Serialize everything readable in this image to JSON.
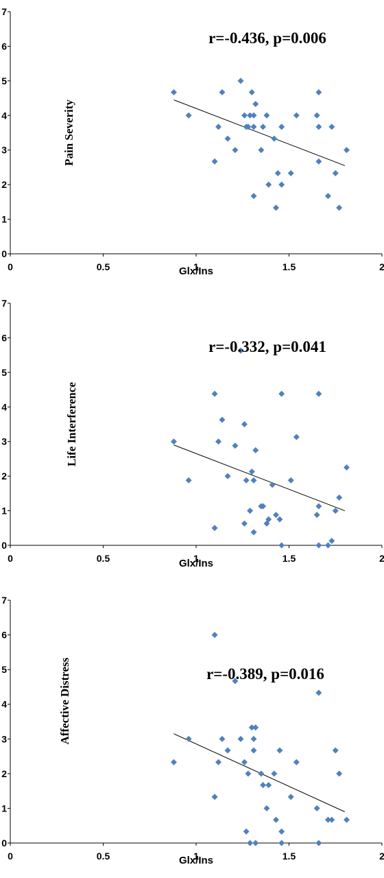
{
  "colors": {
    "marker": "#4f81bd",
    "axis": "#000000",
    "trendline": "#000000"
  },
  "chart_data": [
    {
      "type": "scatter",
      "title": "",
      "xlabel": "Glx/Ins",
      "ylabel": "Pain Severity",
      "annotation": "r=-0.436, p=0.006",
      "xlim": [
        0,
        2
      ],
      "ylim": [
        0,
        7
      ],
      "xticks": [
        0,
        0.5,
        1,
        1.5,
        2
      ],
      "xtick_labels": [
        "0",
        "0.5",
        "1",
        "1.5",
        "2"
      ],
      "yticks": [
        0,
        1,
        2,
        3,
        4,
        5,
        6,
        7
      ],
      "ytick_labels": [
        "0",
        "1",
        "2",
        "3",
        "4",
        "5",
        "6",
        "7"
      ],
      "trendline": {
        "x": [
          0.88,
          1.8
        ],
        "y": [
          4.45,
          2.55
        ]
      },
      "points": [
        [
          0.88,
          4.67
        ],
        [
          0.96,
          4.0
        ],
        [
          1.1,
          2.67
        ],
        [
          1.12,
          3.67
        ],
        [
          1.14,
          4.67
        ],
        [
          1.17,
          3.33
        ],
        [
          1.21,
          3.0
        ],
        [
          1.24,
          5.0
        ],
        [
          1.26,
          4.0
        ],
        [
          1.27,
          3.67
        ],
        [
          1.28,
          3.67
        ],
        [
          1.29,
          4.0
        ],
        [
          1.3,
          4.67
        ],
        [
          1.31,
          3.67
        ],
        [
          1.31,
          4.0
        ],
        [
          1.31,
          1.67
        ],
        [
          1.32,
          4.33
        ],
        [
          1.35,
          3.0
        ],
        [
          1.36,
          3.67
        ],
        [
          1.38,
          4.0
        ],
        [
          1.39,
          2.0
        ],
        [
          1.42,
          3.33
        ],
        [
          1.43,
          1.33
        ],
        [
          1.44,
          2.33
        ],
        [
          1.46,
          3.67
        ],
        [
          1.46,
          2.0
        ],
        [
          1.51,
          2.33
        ],
        [
          1.54,
          4.0
        ],
        [
          1.65,
          4.0
        ],
        [
          1.66,
          3.67
        ],
        [
          1.66,
          2.67
        ],
        [
          1.66,
          4.67
        ],
        [
          1.71,
          1.67
        ],
        [
          1.73,
          3.67
        ],
        [
          1.75,
          2.33
        ],
        [
          1.77,
          1.33
        ],
        [
          1.81,
          3.0
        ]
      ]
    },
    {
      "type": "scatter",
      "title": "",
      "xlabel": "Glx/Ins",
      "ylabel": "Life Interference",
      "annotation": "r=-0.332, p=0.041",
      "xlim": [
        0,
        2
      ],
      "ylim": [
        0,
        7
      ],
      "xticks": [
        0,
        0.5,
        1,
        1.5,
        2
      ],
      "xtick_labels": [
        "0",
        "0.5",
        "1",
        "1.5",
        "2"
      ],
      "yticks": [
        0,
        1,
        2,
        3,
        4,
        5,
        6,
        7
      ],
      "ytick_labels": [
        "0",
        "1",
        "2",
        "3",
        "4",
        "5",
        "6",
        "7"
      ],
      "trendline": {
        "x": [
          0.88,
          1.8
        ],
        "y": [
          2.9,
          1.0
        ]
      },
      "points": [
        [
          0.88,
          3.0
        ],
        [
          0.96,
          1.88
        ],
        [
          1.1,
          0.5
        ],
        [
          1.1,
          4.38
        ],
        [
          1.12,
          3.0
        ],
        [
          1.14,
          3.63
        ],
        [
          1.17,
          2.0
        ],
        [
          1.21,
          2.88
        ],
        [
          1.24,
          5.63
        ],
        [
          1.26,
          3.5
        ],
        [
          1.26,
          0.63
        ],
        [
          1.27,
          1.88
        ],
        [
          1.29,
          1.0
        ],
        [
          1.3,
          2.13
        ],
        [
          1.31,
          1.88
        ],
        [
          1.31,
          0.38
        ],
        [
          1.32,
          2.75
        ],
        [
          1.35,
          1.13
        ],
        [
          1.36,
          1.13
        ],
        [
          1.38,
          0.63
        ],
        [
          1.39,
          0.75
        ],
        [
          1.41,
          1.75
        ],
        [
          1.43,
          0.88
        ],
        [
          1.45,
          0.75
        ],
        [
          1.46,
          4.38
        ],
        [
          1.46,
          0.0
        ],
        [
          1.51,
          1.88
        ],
        [
          1.54,
          3.13
        ],
        [
          1.65,
          0.88
        ],
        [
          1.66,
          0.0
        ],
        [
          1.66,
          1.13
        ],
        [
          1.66,
          4.38
        ],
        [
          1.71,
          0.0
        ],
        [
          1.73,
          0.13
        ],
        [
          1.75,
          1.0
        ],
        [
          1.77,
          1.38
        ],
        [
          1.81,
          2.25
        ]
      ]
    },
    {
      "type": "scatter",
      "title": "",
      "xlabel": "Glx/Ins",
      "ylabel": "Affective Distress",
      "annotation": "r=-0.389, p=0.016",
      "xlim": [
        0,
        2
      ],
      "ylim": [
        0,
        7
      ],
      "xticks": [
        0,
        0.5,
        1,
        1.5,
        2
      ],
      "xtick_labels": [
        "0",
        "0.5",
        "1",
        "1.5",
        "2"
      ],
      "yticks": [
        0,
        1,
        2,
        3,
        4,
        5,
        6,
        7
      ],
      "ytick_labels": [
        "0",
        "1",
        "2",
        "3",
        "4",
        "5",
        "6",
        "7"
      ],
      "trendline": {
        "x": [
          0.88,
          1.8
        ],
        "y": [
          3.15,
          0.9
        ]
      },
      "points": [
        [
          0.88,
          2.33
        ],
        [
          0.96,
          3.0
        ],
        [
          1.1,
          1.33
        ],
        [
          1.1,
          6.0
        ],
        [
          1.12,
          2.33
        ],
        [
          1.14,
          3.0
        ],
        [
          1.17,
          2.67
        ],
        [
          1.21,
          4.67
        ],
        [
          1.24,
          3.0
        ],
        [
          1.26,
          2.33
        ],
        [
          1.27,
          0.33
        ],
        [
          1.28,
          2.0
        ],
        [
          1.29,
          0.0
        ],
        [
          1.3,
          3.33
        ],
        [
          1.31,
          3.0
        ],
        [
          1.31,
          2.67
        ],
        [
          1.32,
          3.33
        ],
        [
          1.32,
          0.0
        ],
        [
          1.35,
          2.0
        ],
        [
          1.36,
          1.67
        ],
        [
          1.38,
          1.0
        ],
        [
          1.39,
          1.67
        ],
        [
          1.42,
          2.0
        ],
        [
          1.43,
          0.67
        ],
        [
          1.45,
          2.67
        ],
        [
          1.46,
          0.33
        ],
        [
          1.46,
          0.0
        ],
        [
          1.51,
          1.33
        ],
        [
          1.54,
          2.33
        ],
        [
          1.65,
          1.0
        ],
        [
          1.66,
          4.33
        ],
        [
          1.66,
          0.0
        ],
        [
          1.71,
          0.67
        ],
        [
          1.73,
          0.67
        ],
        [
          1.75,
          2.67
        ],
        [
          1.77,
          2.0
        ],
        [
          1.81,
          0.67
        ]
      ]
    }
  ]
}
